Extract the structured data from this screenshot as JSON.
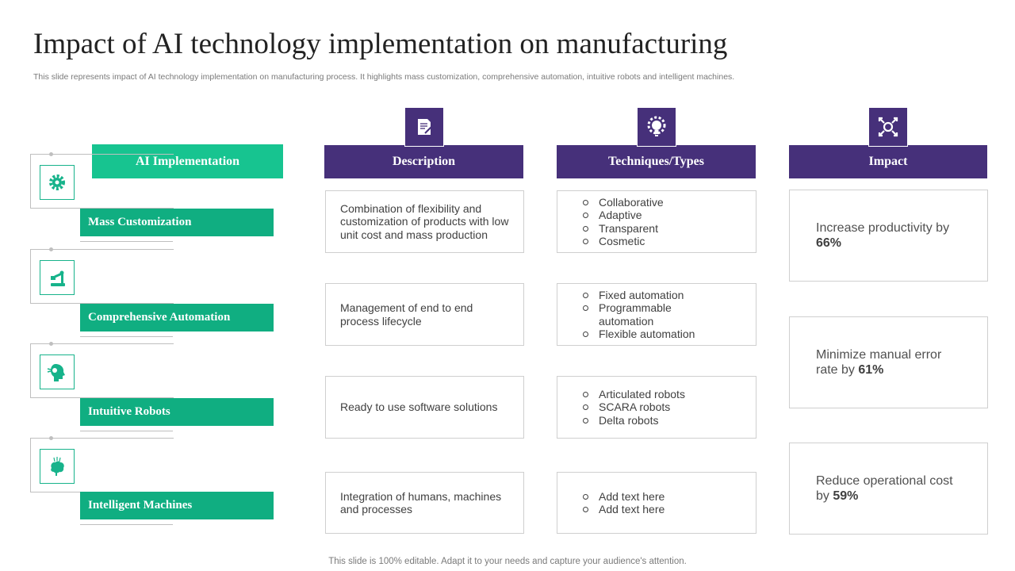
{
  "title": "Impact of AI technology implementation on manufacturing",
  "subtitle": "This slide represents impact of AI  technology implementation on manufacturing process. It highlights mass customization, comprehensive automation, intuitive robots and intelligent machines.",
  "footer": "This slide is 100% editable. Adapt it to your needs and capture your audience's attention.",
  "ai_header": "AI Implementation",
  "rows": [
    {
      "label": "Mass Customization",
      "icon": "gear-icon"
    },
    {
      "label": "Comprehensive Automation",
      "icon": "robotic-arm-icon"
    },
    {
      "label": "Intuitive Robots",
      "icon": "robot-head-icon"
    },
    {
      "label": "Intelligent Machines",
      "icon": "brain-circuit-icon"
    }
  ],
  "columns": {
    "description": {
      "label": "Description",
      "icon": "document-icon"
    },
    "techniques": {
      "label": "Techniques/Types",
      "icon": "lightbulb-gear-icon"
    },
    "impact": {
      "label": "Impact",
      "icon": "arrows-out-icon"
    }
  },
  "descriptions": [
    "Combination of flexibility and customization of products with low unit cost and mass production",
    "Management of end to end process lifecycle",
    "Ready to use software solutions",
    "Integration of humans, machines and processes"
  ],
  "techniques": [
    [
      "Collaborative",
      "Adaptive",
      "Transparent",
      "Cosmetic"
    ],
    [
      "Fixed automation",
      "Programmable automation",
      "Flexible automation"
    ],
    [
      "Articulated robots",
      "SCARA robots",
      "Delta robots"
    ],
    [
      "Add text here",
      "Add text here"
    ]
  ],
  "impacts": [
    {
      "text": "Increase productivity by",
      "value": "66%"
    },
    {
      "text": "Minimize manual error rate by",
      "value": "61%"
    },
    {
      "text": "Reduce operational cost by",
      "value": "59%"
    }
  ],
  "colors": {
    "green": "#10ae81",
    "green_light": "#17c490",
    "purple": "#46307a"
  }
}
